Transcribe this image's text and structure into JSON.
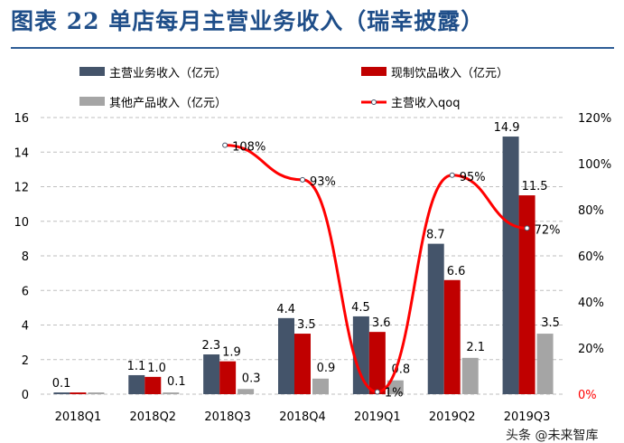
{
  "title": "图表 22   单店每月主营业务收入（瑞幸披露）",
  "watermark": "头条 @未来智库",
  "chart_data": {
    "type": "bar",
    "categories": [
      "2018Q1",
      "2018Q2",
      "2018Q3",
      "2018Q4",
      "2019Q1",
      "2019Q2",
      "2019Q3"
    ],
    "ylim": [
      0,
      16
    ],
    "y_ticks": [
      "0",
      "2",
      "4",
      "6",
      "8",
      "10",
      "12",
      "14",
      "16"
    ],
    "y2lim": [
      0,
      120
    ],
    "y2_ticks": [
      "0%",
      "20%",
      "40%",
      "60%",
      "80%",
      "100%",
      "120%"
    ],
    "grid": true,
    "legend_position": "top",
    "series": [
      {
        "name": "主营业务收入（亿元）",
        "type": "bar",
        "color": "#44546a",
        "values": [
          0.1,
          1.1,
          2.3,
          4.4,
          4.5,
          8.7,
          14.9
        ],
        "labels": [
          "0.1",
          "1.1",
          "2.3",
          "4.4",
          "4.5",
          "8.7",
          "14.9"
        ]
      },
      {
        "name": "现制饮品收入（亿元）",
        "type": "bar",
        "color": "#c00000",
        "values": [
          0.1,
          1.0,
          1.9,
          3.5,
          3.6,
          6.6,
          11.5
        ],
        "labels": [
          "",
          "1.0",
          "1.9",
          "3.5",
          "3.6",
          "6.6",
          "11.5"
        ]
      },
      {
        "name": "其他产品收入（亿元）",
        "type": "bar",
        "color": "#a5a5a5",
        "values": [
          0.1,
          0.1,
          0.3,
          0.9,
          0.8,
          2.1,
          3.5
        ],
        "labels": [
          "",
          "0.1",
          "0.3",
          "0.9",
          "0.8",
          "2.1",
          "3.5"
        ]
      },
      {
        "name": "主营收入qoq",
        "type": "line",
        "axis": "right",
        "color": "#ff0000",
        "values": [
          null,
          null,
          108,
          93,
          1,
          95,
          72
        ],
        "labels": [
          "",
          "",
          "108%",
          "93%",
          "1%",
          "95%",
          "72%"
        ]
      }
    ]
  }
}
